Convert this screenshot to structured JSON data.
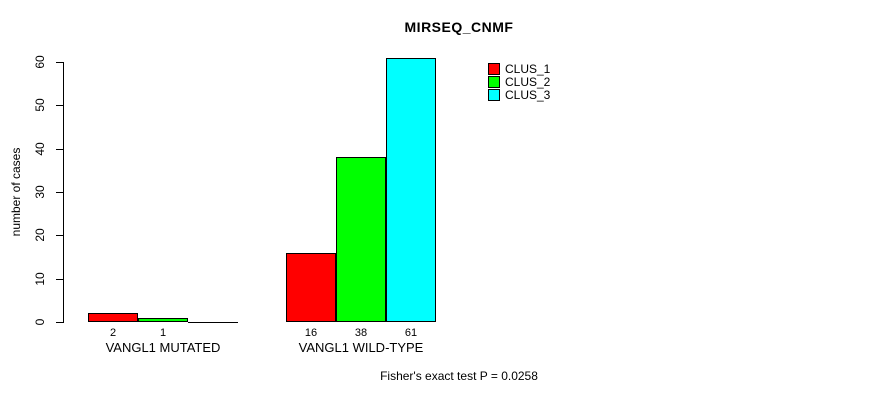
{
  "chart_data": {
    "type": "bar",
    "title": "MIRSEQ_CNMF",
    "xlabel": "",
    "ylabel": "number of cases",
    "ylim": [
      0,
      60
    ],
    "yticks": [
      0,
      10,
      20,
      30,
      40,
      50,
      60
    ],
    "grid": false,
    "legend_position": "top-right-outside",
    "background": "#ffffff",
    "bar_border_color": "#000000",
    "categories": [
      "VANGL1 MUTATED",
      "VANGL1 WILD-TYPE"
    ],
    "series": [
      {
        "name": "CLUS_1",
        "color": "#ff0000",
        "values": [
          2,
          16
        ]
      },
      {
        "name": "CLUS_2",
        "color": "#00ff00",
        "values": [
          1,
          38
        ]
      },
      {
        "name": "CLUS_3",
        "color": "#00ffff",
        "values": [
          0,
          61
        ]
      }
    ],
    "bar_value_labels": [
      [
        "2",
        "1",
        ""
      ],
      [
        "16",
        "38",
        "61"
      ]
    ],
    "annotation": "Fisher's exact test P = 0.0258"
  }
}
